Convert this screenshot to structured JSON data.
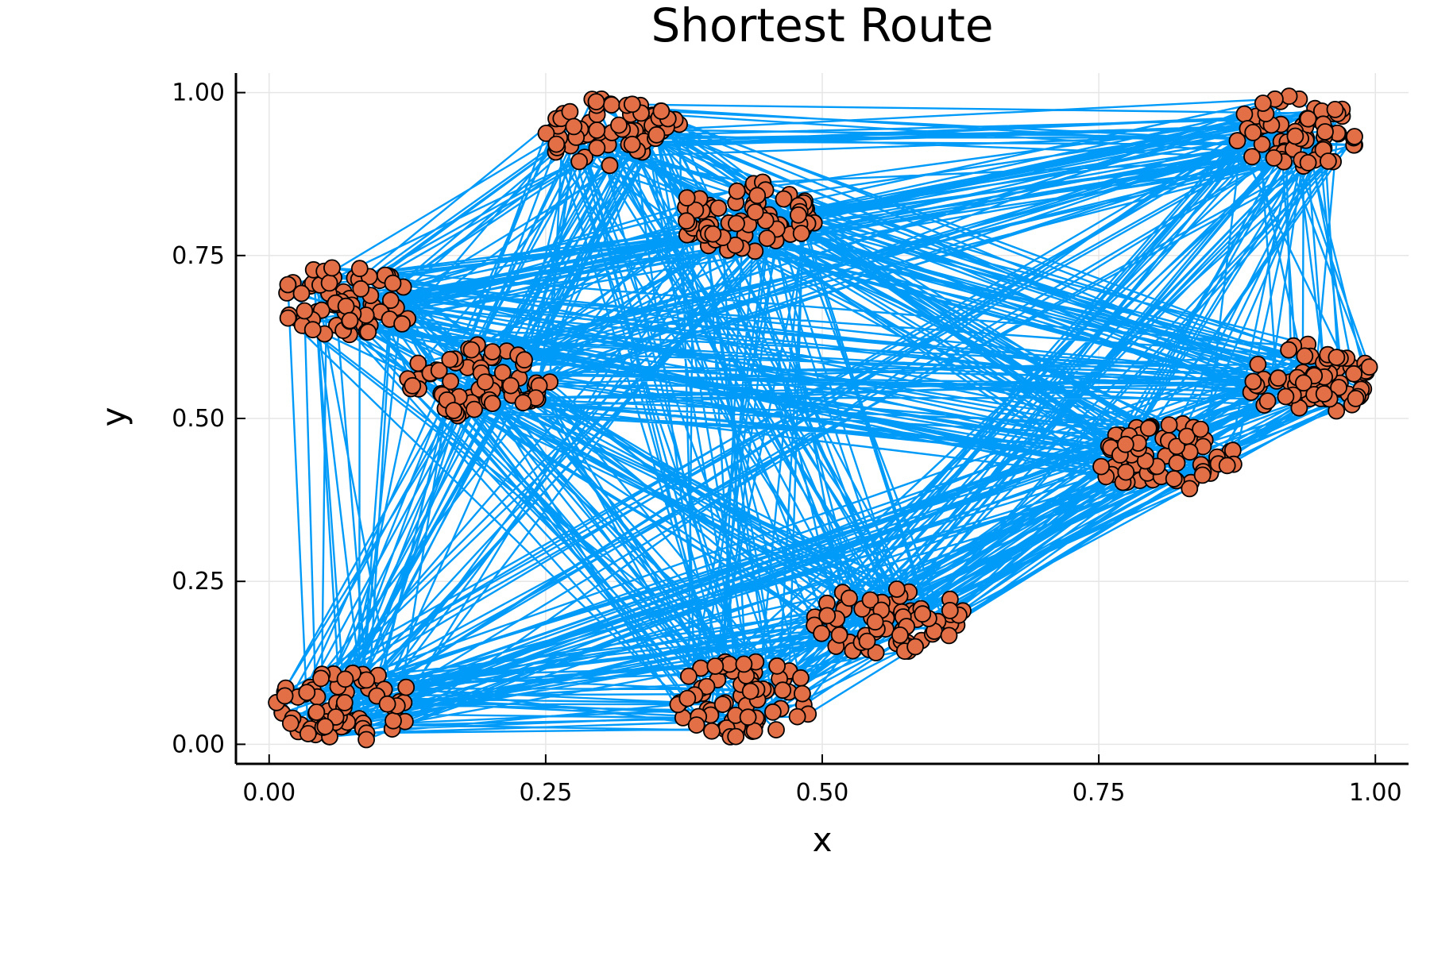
{
  "chart_data": {
    "type": "scatter",
    "title": "Shortest Route",
    "xlabel": "x",
    "ylabel": "y",
    "xlim": [
      -0.03,
      1.03
    ],
    "ylim": [
      -0.03,
      1.03
    ],
    "x_ticks": [
      0.0,
      0.25,
      0.5,
      0.75,
      1.0
    ],
    "y_ticks": [
      0.0,
      0.25,
      0.5,
      0.75,
      1.0
    ],
    "x_tick_labels": [
      "0.00",
      "0.25",
      "0.50",
      "0.75",
      "1.00"
    ],
    "y_tick_labels": [
      "0.00",
      "0.25",
      "0.50",
      "0.75",
      "1.00"
    ],
    "grid": true,
    "legend": "none",
    "colors": {
      "route_line": "#009af9",
      "point_fill": "#e26f46",
      "point_edge": "#000000",
      "grid": "#e6e6e6"
    },
    "clusters": [
      {
        "cx": 0.07,
        "cy": 0.06,
        "rx": 0.065,
        "ry": 0.055,
        "n": 70
      },
      {
        "cx": 0.43,
        "cy": 0.07,
        "rx": 0.065,
        "ry": 0.06,
        "n": 70
      },
      {
        "cx": 0.56,
        "cy": 0.19,
        "rx": 0.07,
        "ry": 0.055,
        "n": 70
      },
      {
        "cx": 0.07,
        "cy": 0.68,
        "rx": 0.065,
        "ry": 0.055,
        "n": 70
      },
      {
        "cx": 0.19,
        "cy": 0.56,
        "rx": 0.065,
        "ry": 0.06,
        "n": 70
      },
      {
        "cx": 0.31,
        "cy": 0.94,
        "rx": 0.065,
        "ry": 0.055,
        "n": 70
      },
      {
        "cx": 0.43,
        "cy": 0.81,
        "rx": 0.065,
        "ry": 0.055,
        "n": 70
      },
      {
        "cx": 0.81,
        "cy": 0.44,
        "rx": 0.065,
        "ry": 0.055,
        "n": 70
      },
      {
        "cx": 0.94,
        "cy": 0.56,
        "rx": 0.06,
        "ry": 0.055,
        "n": 70
      },
      {
        "cx": 0.93,
        "cy": 0.94,
        "rx": 0.06,
        "ry": 0.055,
        "n": 70
      }
    ]
  }
}
